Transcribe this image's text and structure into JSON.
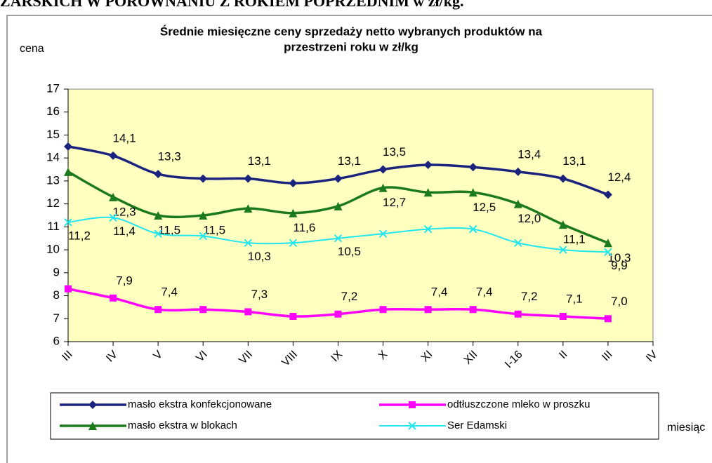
{
  "heading": "ZARSKICH W PORÓWNANIU Z ROKIEM POPRZEDNIM w zł/kg.",
  "chart_data": {
    "type": "line",
    "title": [
      "Średnie miesięczne ceny sprzedaży netto  wybranych produktów na",
      "przestrzeni roku w zł/kg"
    ],
    "y_label": "cena",
    "x_label": "miesiąc",
    "categories": [
      "III",
      "IV",
      "V",
      "VI",
      "VII",
      "VIII",
      "IX",
      "X",
      "XI",
      "XII",
      "I-16",
      "II",
      "III",
      "IV"
    ],
    "ylim": [
      6,
      17
    ],
    "yticks": [
      6,
      7,
      8,
      9,
      10,
      11,
      12,
      13,
      14,
      15,
      16,
      17
    ],
    "series": [
      {
        "name": "masło ekstra konfekcjonowane",
        "color": "#1a237e",
        "marker": "diamond",
        "values": [
          14.5,
          14.1,
          13.3,
          13.1,
          13.1,
          12.9,
          13.1,
          13.5,
          13.7,
          13.6,
          13.4,
          13.1,
          12.4,
          null
        ],
        "value_labels": [
          null,
          "14,1",
          "13,3",
          null,
          "13,1",
          null,
          "13,1",
          "13,5",
          null,
          null,
          "13,4",
          "13,1",
          "12,4",
          null
        ]
      },
      {
        "name": "odtłuszczone mleko w proszku",
        "color": "#ff00ff",
        "marker": "square",
        "values": [
          8.3,
          7.9,
          7.4,
          7.4,
          7.3,
          7.1,
          7.2,
          7.4,
          7.4,
          7.4,
          7.2,
          7.1,
          7.0,
          null
        ],
        "value_labels": [
          null,
          "7,9",
          "7,4",
          null,
          "7,3",
          null,
          "7,2",
          null,
          "7,4",
          "7,4",
          "7,2",
          "7,1",
          "7,0",
          null
        ]
      },
      {
        "name": "masło ekstra w blokach",
        "color": "#1b7a1b",
        "marker": "triangle",
        "values": [
          13.4,
          12.3,
          11.5,
          11.5,
          11.8,
          11.6,
          11.9,
          12.7,
          12.5,
          12.5,
          12.0,
          11.1,
          10.3,
          null
        ],
        "value_labels": [
          null,
          "12,3",
          "11,5",
          "11,5",
          null,
          "11,6",
          null,
          "12,7",
          null,
          "12,5",
          "12,0",
          "11,1",
          "10,3",
          null
        ]
      },
      {
        "name": "Ser Edamski",
        "color": "#22e5f0",
        "marker": "x",
        "values": [
          11.2,
          11.4,
          10.7,
          10.6,
          10.3,
          10.3,
          10.5,
          10.7,
          10.9,
          10.9,
          10.3,
          10.0,
          9.9,
          null
        ],
        "value_labels": [
          "11,2",
          "11,4",
          null,
          null,
          "10,3",
          null,
          "10,5",
          null,
          null,
          null,
          null,
          null,
          "9,9",
          null
        ]
      }
    ],
    "legend": "bottom",
    "plot_background": "#ffffc0"
  }
}
